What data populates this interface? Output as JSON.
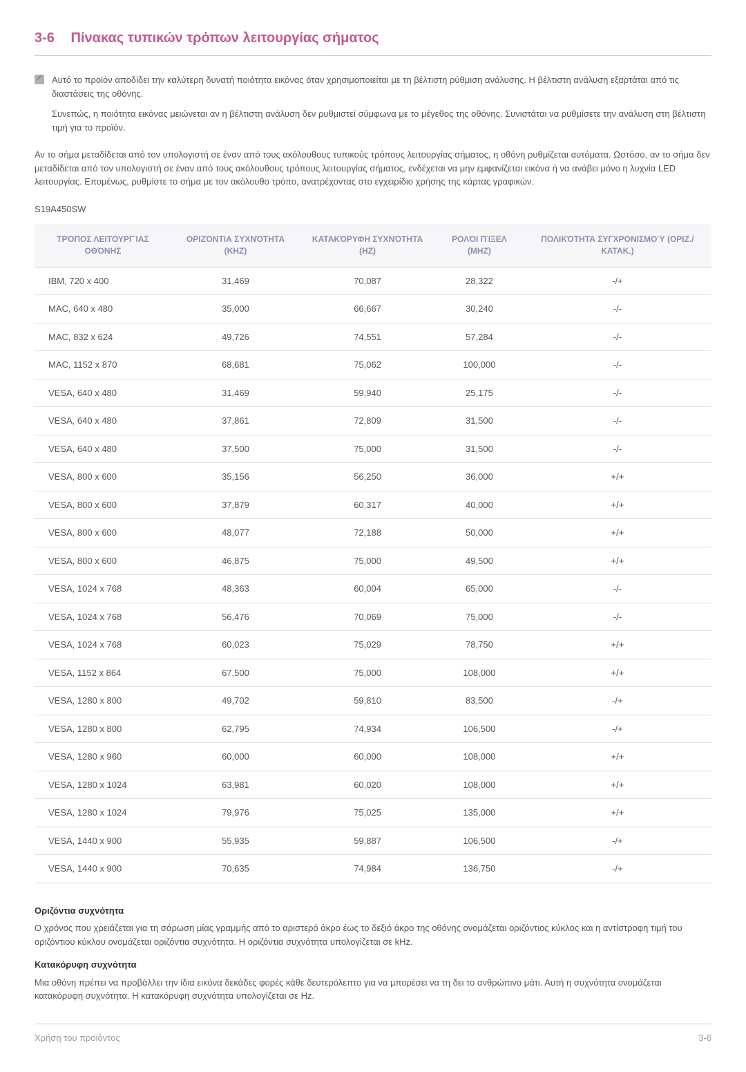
{
  "section": {
    "number": "3-6",
    "title": "Πίνακας τυπικών τρόπων λειτουργίας σήματος"
  },
  "note": {
    "p1": "Αυτό το προϊόν αποδίδει την καλύτερη δυνατή ποιότητα εικόνας όταν χρησιμοποιείται με τη βέλτιστη ρύθμιση ανάλυσης. Η βέλτιστη ανάλυση εξαρτάται από τις διαστάσεις της οθόνης.",
    "p2": "Συνεπώς, η ποιότητα εικόνας μειώνεται αν η βέλτιστη ανάλυση δεν ρυθμιστεί σύμφωνα με το μέγεθος της οθόνης. Συνιστάται να ρυθμίσετε την ανάλυση στη βέλτιστη τιμή για το προϊόν."
  },
  "body_para": "Αν το σήμα μεταδίδεται από τον υπολογιστή σε έναν από τους ακόλουθους τυπικούς τρόπους λειτουργίας σήματος, η οθόνη ρυθμίζεται αυτόματα. Ωστόσο, αν το σήμα δεν μεταδίδεται από τον υπολογιστή σε έναν από τους ακόλουθους τρόπους λειτουργίας σήματος, ενδέχεται να μην εμφανίζεται εικόνα ή να ανάβει μόνο η λυχνία LED λειτουργίας. Επομένως, ρυθμίστε το σήμα με τον ακόλουθο τρόπο, ανατρέχοντας στο εγχειρίδιο χρήσης της κάρτας γραφικών.",
  "model": "S19A450SW",
  "table": {
    "columns": [
      "ΤΡΌΠΟΣ ΛΕΙΤΟΥΡΓΊΑΣ ΟΘΌΝΗΣ",
      "ΟΡΙΖΌΝΤΙΑ ΣΥΧΝΌΤΗΤΑ (KHZ)",
      "ΚΑΤΑΚΌΡΥΦΗ ΣΥΧΝΌΤΗΤΑ (HZ)",
      "ΡΟΛΌΙ ΠΊΞΕΛ (MHZ)",
      "ΠΟΛΙΚΌΤΗΤΑ ΣΥΓΧΡΟΝΙΣΜΟΎ (ΟΡΙΖ./ΚΑΤΑΚ.)"
    ],
    "rows": [
      [
        "IBM, 720 x 400",
        "31,469",
        "70,087",
        "28,322",
        "-/+"
      ],
      [
        "MAC, 640 x 480",
        "35,000",
        "66,667",
        "30,240",
        "-/-"
      ],
      [
        "MAC, 832 x 624",
        "49,726",
        "74,551",
        "57,284",
        "-/-"
      ],
      [
        "MAC, 1152 x 870",
        "68,681",
        "75,062",
        "100,000",
        "-/-"
      ],
      [
        "VESA, 640 x 480",
        "31,469",
        "59,940",
        "25,175",
        "-/-"
      ],
      [
        "VESA, 640 x 480",
        "37,861",
        "72,809",
        "31,500",
        "-/-"
      ],
      [
        "VESA, 640 x 480",
        "37,500",
        "75,000",
        "31,500",
        "-/-"
      ],
      [
        "VESA, 800 x 600",
        "35,156",
        "56,250",
        "36,000",
        "+/+"
      ],
      [
        "VESA, 800 x 600",
        "37,879",
        "60,317",
        "40,000",
        "+/+"
      ],
      [
        "VESA, 800 x 600",
        "48,077",
        "72,188",
        "50,000",
        "+/+"
      ],
      [
        "VESA, 800 x 600",
        "46,875",
        "75,000",
        "49,500",
        "+/+"
      ],
      [
        "VESA, 1024 x 768",
        "48,363",
        "60,004",
        "65,000",
        "-/-"
      ],
      [
        "VESA, 1024 x 768",
        "56,476",
        "70,069",
        "75,000",
        "-/-"
      ],
      [
        "VESA, 1024 x 768",
        "60,023",
        "75,029",
        "78,750",
        "+/+"
      ],
      [
        "VESA, 1152 x 864",
        "67,500",
        "75,000",
        "108,000",
        "+/+"
      ],
      [
        "VESA, 1280 x 800",
        "49,702",
        "59,810",
        "83,500",
        "-/+"
      ],
      [
        "VESA, 1280 x 800",
        "62,795",
        "74,934",
        "106,500",
        "-/+"
      ],
      [
        "VESA, 1280 x 960",
        "60,000",
        "60,000",
        "108,000",
        "+/+"
      ],
      [
        "VESA, 1280 x 1024",
        "63,981",
        "60,020",
        "108,000",
        "+/+"
      ],
      [
        "VESA, 1280 x 1024",
        "79,976",
        "75,025",
        "135,000",
        "+/+"
      ],
      [
        "VESA, 1440 x 900",
        "55,935",
        "59,887",
        "106,500",
        "-/+"
      ],
      [
        "VESA, 1440 x 900",
        "70,635",
        "74,984",
        "136,750",
        "-/+"
      ]
    ]
  },
  "definitions": {
    "horiz_title": "Οριζόντια συχνότητα",
    "horiz_text": "Ο χρόνος που χρειάζεται για τη σάρωση μίας γραμμής από το αριστερό άκρο έως το δεξιό άκρο της οθόνης ονομάζεται οριζόντιος κύκλος και η αντίστροφη τιμή του οριζόντιου κύκλου ονομάζεται οριζόντια συχνότητα. Η οριζόντια συχνότητα υπολογίζεται σε kHz.",
    "vert_title": "Κατακόρυφη συχνότητα",
    "vert_text": "Μια οθόνη πρέπει να προβάλλει την ίδια εικόνα δεκάδες φορές κάθε δευτερόλεπτο για να μπορέσει να τη δει το ανθρώπινο μάτι. Αυτή η συχνότητα ονομάζεται κατακόρυφη συχνότητα. Η κατακόρυφη συχνότητα υπολογίζεται σε Hz."
  },
  "footer": {
    "left": "Χρήση του προϊόντος",
    "right": "3-6"
  },
  "colors": {
    "accent": "#c4588f",
    "header_bg": "#f6f6f8",
    "header_text": "#8a8fb0",
    "body_text": "#555555",
    "border": "#cccccc",
    "row_border": "#dddddd"
  }
}
